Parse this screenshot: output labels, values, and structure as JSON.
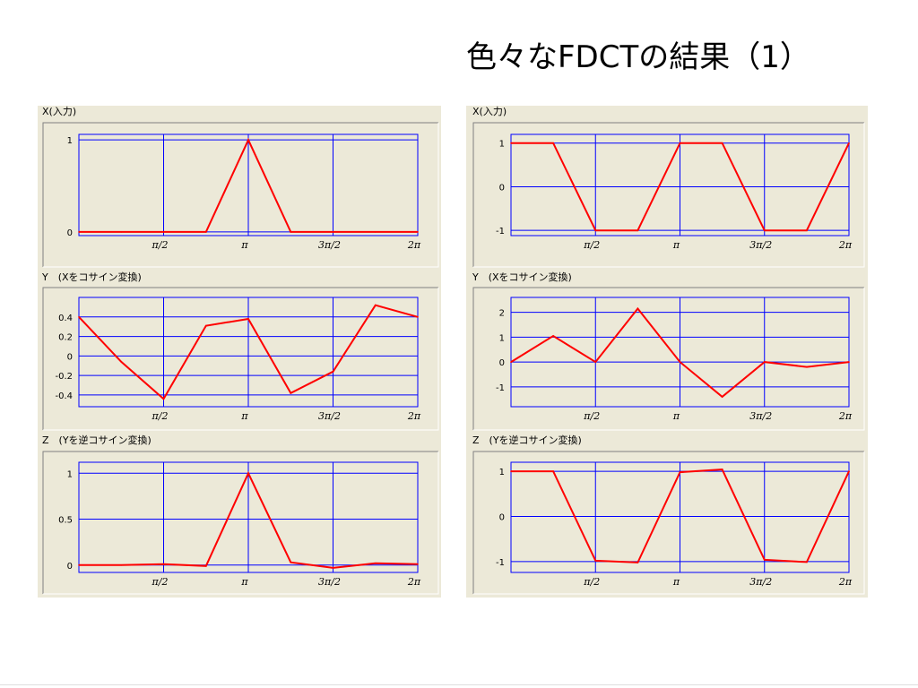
{
  "slide": {
    "title": "色々なFDCTの結果（1）"
  },
  "colors": {
    "panel_bg": "#ece9d8",
    "grid": "#0000ff",
    "line": "#ff0000",
    "frame": "#808080"
  },
  "chart_data": [
    {
      "type": "line",
      "column": "left",
      "title": "X(入力)",
      "x": [
        0,
        0.7854,
        1.5708,
        2.3562,
        3.1416,
        3.927,
        4.7124,
        5.4978,
        6.2832
      ],
      "values": [
        0,
        0,
        0,
        0,
        1,
        0,
        0,
        0,
        0
      ],
      "ylim": [
        -0.04,
        1.06
      ],
      "xlim": [
        0,
        6.2832
      ],
      "yticks": [
        {
          "v": 0,
          "label": "0"
        },
        {
          "v": 1,
          "label": "1"
        }
      ],
      "xticks": [
        {
          "v": 1.5708,
          "label": "π/2"
        },
        {
          "v": 3.1416,
          "label": "π"
        },
        {
          "v": 4.7124,
          "label": "3π/2"
        },
        {
          "v": 6.2832,
          "label": "2π"
        }
      ],
      "grid": true
    },
    {
      "type": "line",
      "column": "left",
      "title": "Y　(Xをコサイン変換)",
      "x": [
        0,
        0.7854,
        1.5708,
        2.3562,
        3.1416,
        3.927,
        4.7124,
        5.4978,
        6.2832
      ],
      "values": [
        0.4,
        -0.06,
        -0.44,
        0.31,
        0.38,
        -0.38,
        -0.16,
        0.52,
        0.4
      ],
      "ylim": [
        -0.52,
        0.6
      ],
      "xlim": [
        0,
        6.2832
      ],
      "yticks": [
        {
          "v": 0.4,
          "label": "0.4"
        },
        {
          "v": 0.2,
          "label": "0.2"
        },
        {
          "v": 0,
          "label": "0"
        },
        {
          "v": -0.2,
          "label": "-0.2"
        },
        {
          "v": -0.4,
          "label": "-0.4"
        }
      ],
      "xticks": [
        {
          "v": 1.5708,
          "label": "π/2"
        },
        {
          "v": 3.1416,
          "label": "π"
        },
        {
          "v": 4.7124,
          "label": "3π/2"
        },
        {
          "v": 6.2832,
          "label": "2π"
        }
      ],
      "grid": true
    },
    {
      "type": "line",
      "column": "left",
      "title": "Z　(Yを逆コサイン変換)",
      "x": [
        0,
        0.7854,
        1.5708,
        2.3562,
        3.1416,
        3.927,
        4.7124,
        5.4978,
        6.2832
      ],
      "values": [
        0,
        0,
        0.01,
        -0.01,
        1,
        0.03,
        -0.03,
        0.02,
        0.01
      ],
      "ylim": [
        -0.08,
        1.12
      ],
      "xlim": [
        0,
        6.2832
      ],
      "yticks": [
        {
          "v": 1,
          "label": "1"
        },
        {
          "v": 0.5,
          "label": "0.5"
        },
        {
          "v": 0,
          "label": "0"
        }
      ],
      "xticks": [
        {
          "v": 1.5708,
          "label": "π/2"
        },
        {
          "v": 3.1416,
          "label": "π"
        },
        {
          "v": 4.7124,
          "label": "3π/2"
        },
        {
          "v": 6.2832,
          "label": "2π"
        }
      ],
      "grid": true
    },
    {
      "type": "line",
      "column": "right",
      "title": "X(入力)",
      "x": [
        0,
        0.7854,
        1.5708,
        2.3562,
        3.1416,
        3.927,
        4.7124,
        5.4978,
        6.2832
      ],
      "values": [
        1,
        1,
        -1,
        -1,
        1,
        1,
        -1,
        -1,
        1
      ],
      "ylim": [
        -1.12,
        1.2
      ],
      "xlim": [
        0,
        6.2832
      ],
      "yticks": [
        {
          "v": 1,
          "label": "1"
        },
        {
          "v": 0,
          "label": "0"
        },
        {
          "v": -1,
          "label": "-1"
        }
      ],
      "xticks": [
        {
          "v": 1.5708,
          "label": "π/2"
        },
        {
          "v": 3.1416,
          "label": "π"
        },
        {
          "v": 4.7124,
          "label": "3π/2"
        },
        {
          "v": 6.2832,
          "label": "2π"
        }
      ],
      "grid": true
    },
    {
      "type": "line",
      "column": "right",
      "title": "Y　(Xをコサイン変換)",
      "x": [
        0,
        0.7854,
        1.5708,
        2.3562,
        3.1416,
        3.927,
        4.7124,
        5.4978,
        6.2832
      ],
      "values": [
        0,
        1.05,
        0,
        2.15,
        0,
        -1.4,
        0,
        -0.2,
        0
      ],
      "ylim": [
        -1.8,
        2.6
      ],
      "xlim": [
        0,
        6.2832
      ],
      "yticks": [
        {
          "v": 2,
          "label": "2"
        },
        {
          "v": 1,
          "label": "1"
        },
        {
          "v": 0,
          "label": "0"
        },
        {
          "v": -1,
          "label": "-1"
        }
      ],
      "xticks": [
        {
          "v": 1.5708,
          "label": "π/2"
        },
        {
          "v": 3.1416,
          "label": "π"
        },
        {
          "v": 4.7124,
          "label": "3π/2"
        },
        {
          "v": 6.2832,
          "label": "2π"
        }
      ],
      "grid": true
    },
    {
      "type": "line",
      "column": "right",
      "title": "Z　(Yを逆コサイン変換)",
      "x": [
        0,
        0.7854,
        1.5708,
        2.3562,
        3.1416,
        3.927,
        4.7124,
        5.4978,
        6.2832
      ],
      "values": [
        1,
        1,
        -0.98,
        -1.02,
        0.98,
        1.04,
        -0.96,
        -1.01,
        1
      ],
      "ylim": [
        -1.24,
        1.2
      ],
      "xlim": [
        0,
        6.2832
      ],
      "yticks": [
        {
          "v": 1,
          "label": "1"
        },
        {
          "v": 0,
          "label": "0"
        },
        {
          "v": -1,
          "label": "-1"
        }
      ],
      "xticks": [
        {
          "v": 1.5708,
          "label": "π/2"
        },
        {
          "v": 3.1416,
          "label": "π"
        },
        {
          "v": 4.7124,
          "label": "3π/2"
        },
        {
          "v": 6.2832,
          "label": "2π"
        }
      ],
      "grid": true
    }
  ]
}
